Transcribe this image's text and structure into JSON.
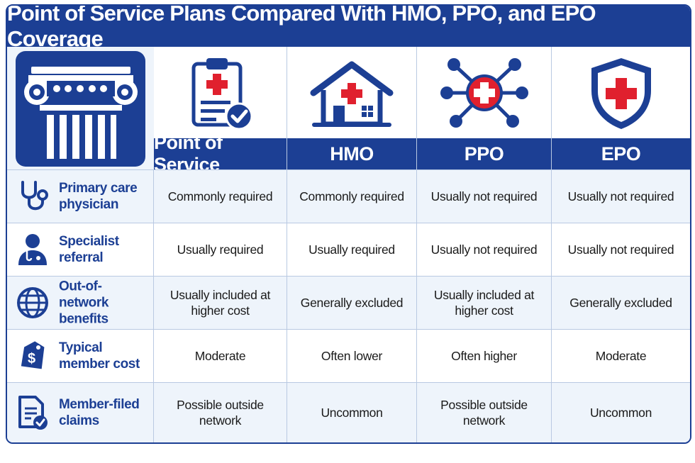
{
  "title": "Point of Service Plans Compared With HMO, PPO, and EPO Coverage",
  "colors": {
    "brand_blue": "#1c3f94",
    "accent_red": "#e0202e",
    "row_alt": "#eef4fb"
  },
  "logo": {
    "icon": "greek-column-icon"
  },
  "plans": [
    {
      "label": "Point of Service",
      "icon": "clipboard-check-icon"
    },
    {
      "label": "HMO",
      "icon": "house-medical-icon"
    },
    {
      "label": "PPO",
      "icon": "network-hub-icon"
    },
    {
      "label": "EPO",
      "icon": "shield-cross-icon"
    }
  ],
  "rows": [
    {
      "feature": "Primary care physician",
      "icon": "stethoscope-icon",
      "values": [
        "Commonly required",
        "Commonly required",
        "Usually not required",
        "Usually not required"
      ]
    },
    {
      "feature": "Specialist referral",
      "icon": "doctor-icon",
      "values": [
        "Usually required",
        "Usually required",
        "Usually not required",
        "Usually not required"
      ]
    },
    {
      "feature": "Out-of-network benefits",
      "icon": "globe-icon",
      "values": [
        "Usually included at higher cost",
        "Generally excluded",
        "Usually included at higher cost",
        "Generally excluded"
      ]
    },
    {
      "feature": "Typical member cost",
      "icon": "price-tag-icon",
      "values": [
        "Moderate",
        "Often lower",
        "Often higher",
        "Moderate"
      ]
    },
    {
      "feature": "Member-filed claims",
      "icon": "claim-document-icon",
      "values": [
        "Possible outside network",
        "Uncommon",
        "Possible outside network",
        "Uncommon"
      ]
    }
  ]
}
